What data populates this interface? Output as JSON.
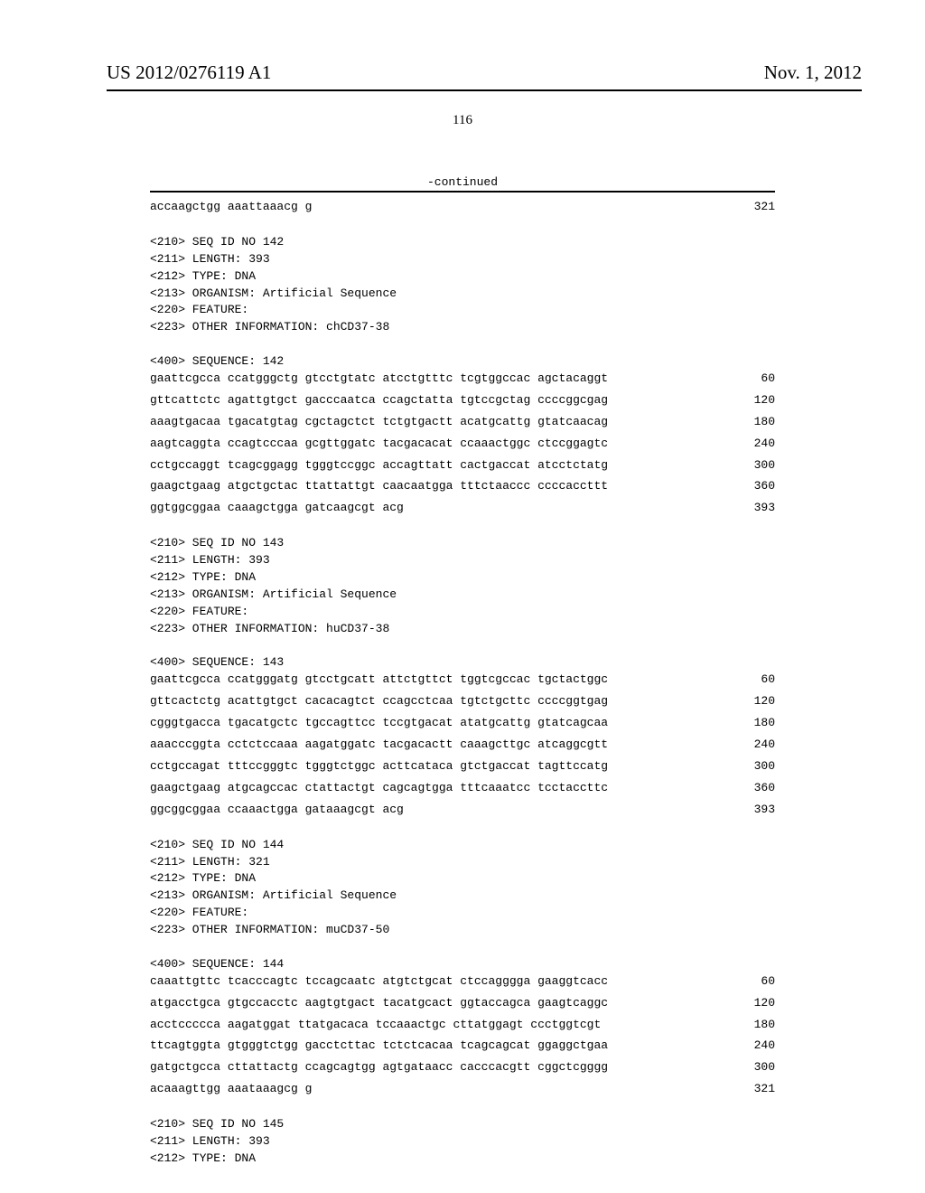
{
  "header": {
    "pub_number": "US 2012/0276119 A1",
    "pub_date": "Nov. 1, 2012",
    "page_number": "116",
    "continued_label": "-continued"
  },
  "orphan": {
    "line": "accaagctgg aaattaaacg g",
    "num": "321"
  },
  "blocks": [
    {
      "meta": [
        "<210> SEQ ID NO 142",
        "<211> LENGTH: 393",
        "<212> TYPE: DNA",
        "<213> ORGANISM: Artificial Sequence",
        "<220> FEATURE:",
        "<223> OTHER INFORMATION: chCD37-38",
        "",
        "<400> SEQUENCE: 142"
      ],
      "rows": [
        {
          "text": "gaattcgcca ccatgggctg gtcctgtatc atcctgtttc tcgtggccac agctacaggt",
          "num": "60"
        },
        {
          "text": "gttcattctc agattgtgct gacccaatca ccagctatta tgtccgctag ccccggcgag",
          "num": "120"
        },
        {
          "text": "aaagtgacaa tgacatgtag cgctagctct tctgtgactt acatgcattg gtatcaacag",
          "num": "180"
        },
        {
          "text": "aagtcaggta ccagtcccaa gcgttggatc tacgacacat ccaaactggc ctccggagtc",
          "num": "240"
        },
        {
          "text": "cctgccaggt tcagcggagg tgggtccggc accagttatt cactgaccat atcctctatg",
          "num": "300"
        },
        {
          "text": "gaagctgaag atgctgctac ttattattgt caacaatgga tttctaaccc ccccaccttt",
          "num": "360"
        },
        {
          "text": "ggtggcggaa caaagctgga gatcaagcgt acg",
          "num": "393"
        }
      ]
    },
    {
      "meta": [
        "<210> SEQ ID NO 143",
        "<211> LENGTH: 393",
        "<212> TYPE: DNA",
        "<213> ORGANISM: Artificial Sequence",
        "<220> FEATURE:",
        "<223> OTHER INFORMATION: huCD37-38",
        "",
        "<400> SEQUENCE: 143"
      ],
      "rows": [
        {
          "text": "gaattcgcca ccatgggatg gtcctgcatt attctgttct tggtcgccac tgctactggc",
          "num": "60"
        },
        {
          "text": "gttcactctg acattgtgct cacacagtct ccagcctcaa tgtctgcttc ccccggtgag",
          "num": "120"
        },
        {
          "text": "cgggtgacca tgacatgctc tgccagttcc tccgtgacat atatgcattg gtatcagcaa",
          "num": "180"
        },
        {
          "text": "aaacccggta cctctccaaa aagatggatc tacgacactt caaagcttgc atcaggcgtt",
          "num": "240"
        },
        {
          "text": "cctgccagat tttccgggtc tgggtctggc acttcataca gtctgaccat tagttccatg",
          "num": "300"
        },
        {
          "text": "gaagctgaag atgcagccac ctattactgt cagcagtgga tttcaaatcc tcctaccttc",
          "num": "360"
        },
        {
          "text": "ggcggcggaa ccaaactgga gataaagcgt acg",
          "num": "393"
        }
      ]
    },
    {
      "meta": [
        "<210> SEQ ID NO 144",
        "<211> LENGTH: 321",
        "<212> TYPE: DNA",
        "<213> ORGANISM: Artificial Sequence",
        "<220> FEATURE:",
        "<223> OTHER INFORMATION: muCD37-50",
        "",
        "<400> SEQUENCE: 144"
      ],
      "rows": [
        {
          "text": "caaattgttc tcacccagtc tccagcaatc atgtctgcat ctccagggga gaaggtcacc",
          "num": "60"
        },
        {
          "text": "atgacctgca gtgccacctc aagtgtgact tacatgcact ggtaccagca gaagtcaggc",
          "num": "120"
        },
        {
          "text": "acctccccca aagatggat ttatgacaca tccaaactgc cttatggagt ccctggtcgt",
          "num": "180"
        },
        {
          "text": "ttcagtggta gtgggtctgg gacctcttac tctctcacaa tcagcagcat ggaggctgaa",
          "num": "240"
        },
        {
          "text": "gatgctgcca cttattactg ccagcagtgg agtgataacc cacccacgtt cggctcgggg",
          "num": "300"
        },
        {
          "text": "acaaagttgg aaataaagcg g",
          "num": "321"
        }
      ]
    },
    {
      "meta": [
        "<210> SEQ ID NO 145",
        "<211> LENGTH: 393",
        "<212> TYPE: DNA"
      ],
      "rows": []
    }
  ]
}
